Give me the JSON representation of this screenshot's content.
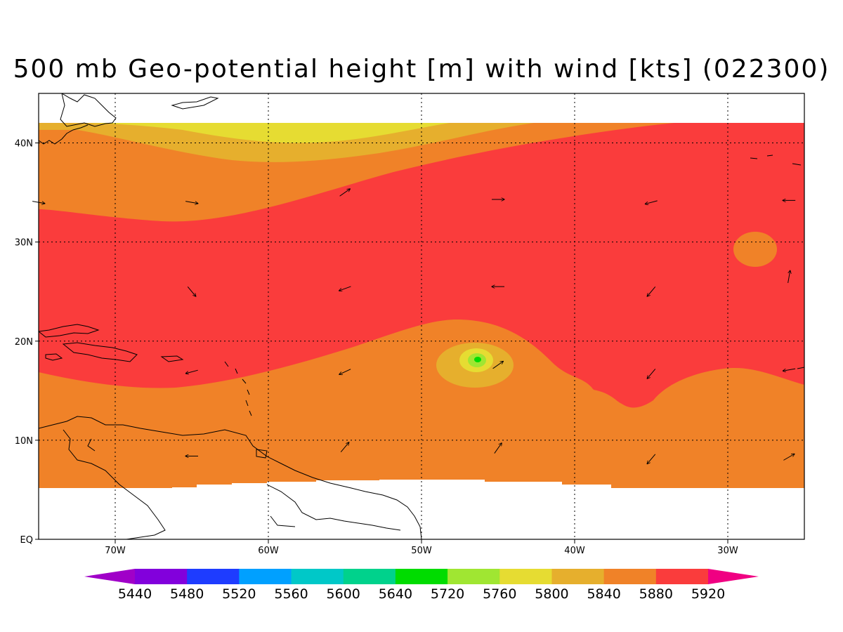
{
  "title": "500 mb Geo-potential height [m] with wind [kts] (022300)",
  "map": {
    "lon_range": [
      -75,
      -25
    ],
    "lat_range": [
      0,
      45
    ],
    "lon_ticks": [
      {
        "lon": -70,
        "label": "70W"
      },
      {
        "lon": -60,
        "label": "60W"
      },
      {
        "lon": -50,
        "label": "50W"
      },
      {
        "lon": -40,
        "label": "40W"
      },
      {
        "lon": -30,
        "label": "30W"
      }
    ],
    "lat_ticks": [
      {
        "lat": 0,
        "label": "EQ"
      },
      {
        "lat": 10,
        "label": "10N"
      },
      {
        "lat": 20,
        "label": "20N"
      },
      {
        "lat": 30,
        "label": "30N"
      },
      {
        "lat": 40,
        "label": "40N"
      }
    ],
    "data_lat_range": [
      4,
      42
    ],
    "height_field": {
      "high_center": {
        "lon": -46.2,
        "lat": 18,
        "max_contour": 5720
      },
      "low_bubble": {
        "lon": -28.3,
        "lat": 29.7,
        "contour": 5840
      }
    }
  },
  "colorbar": {
    "levels": [
      "5440",
      "5480",
      "5520",
      "5560",
      "5600",
      "5640",
      "5720",
      "5760",
      "5800",
      "5840",
      "5880",
      "5920"
    ],
    "colors": [
      "#a000c8",
      "#8200dc",
      "#1e3cff",
      "#00a0ff",
      "#00c8c8",
      "#00d28c",
      "#00dc00",
      "#a0e632",
      "#e6dc32",
      "#e6af2d",
      "#f08228",
      "#fa3c3c",
      "#f00082"
    ]
  },
  "wind_vectors": [
    {
      "lon": -75,
      "lat": 34,
      "dir_deg": 10
    },
    {
      "lon": -65,
      "lat": 34,
      "dir_deg": 10
    },
    {
      "lon": -55,
      "lat": 35,
      "dir_deg": -35
    },
    {
      "lon": -45,
      "lat": 34.3,
      "dir_deg": 0
    },
    {
      "lon": -35,
      "lat": 34,
      "dir_deg": 165
    },
    {
      "lon": -26,
      "lat": 34.2,
      "dir_deg": 180
    },
    {
      "lon": -65,
      "lat": 25,
      "dir_deg": 50
    },
    {
      "lon": -55,
      "lat": 25.3,
      "dir_deg": 160
    },
    {
      "lon": -45,
      "lat": 25.5,
      "dir_deg": 180
    },
    {
      "lon": -35,
      "lat": 25,
      "dir_deg": 130
    },
    {
      "lon": -26,
      "lat": 26.5,
      "dir_deg": -80
    },
    {
      "lon": -65,
      "lat": 16.9,
      "dir_deg": 165
    },
    {
      "lon": -55,
      "lat": 16.9,
      "dir_deg": 155
    },
    {
      "lon": -45,
      "lat": 17.6,
      "dir_deg": -35
    },
    {
      "lon": -35,
      "lat": 16.7,
      "dir_deg": 130
    },
    {
      "lon": -26,
      "lat": 17.1,
      "dir_deg": 170
    },
    {
      "lon": -65,
      "lat": 8.4,
      "dir_deg": 180
    },
    {
      "lon": -55,
      "lat": 9.3,
      "dir_deg": -50
    },
    {
      "lon": -45,
      "lat": 9.2,
      "dir_deg": -55
    },
    {
      "lon": -35,
      "lat": 8.1,
      "dir_deg": 130
    },
    {
      "lon": -26,
      "lat": 8.3,
      "dir_deg": -30
    }
  ]
}
